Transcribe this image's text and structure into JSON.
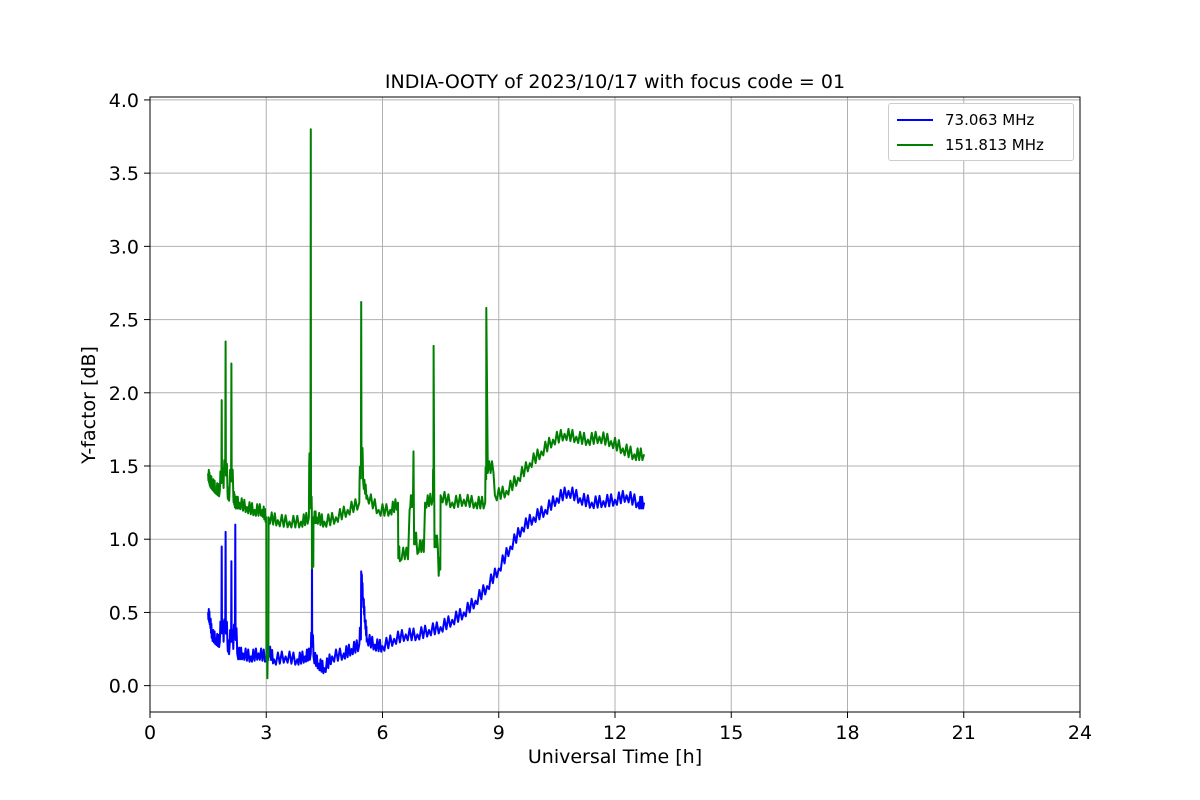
{
  "chart_data": {
    "type": "line",
    "title": "INDIA-OOTY of 2023/10/17 with focus code = 01",
    "xlabel": "Universal Time [h]",
    "ylabel": "Y-factor [dB]",
    "xlim": [
      0,
      24
    ],
    "ylim": [
      -0.18,
      4.02
    ],
    "xticks": [
      0,
      3,
      6,
      9,
      12,
      15,
      18,
      21,
      24
    ],
    "yticks": [
      0.0,
      0.5,
      1.0,
      1.5,
      2.0,
      2.5,
      3.0,
      3.5,
      4.0
    ],
    "xtick_labels": [
      "0",
      "3",
      "6",
      "9",
      "12",
      "15",
      "18",
      "21",
      "24"
    ],
    "ytick_labels": [
      "0.0",
      "0.5",
      "1.0",
      "1.5",
      "2.0",
      "2.5",
      "3.0",
      "3.5",
      "4.0"
    ],
    "grid": true,
    "legend_position": "top-right",
    "series": [
      {
        "name": "73.063 MHz",
        "color": "#0000ff",
        "x": [
          1.5,
          1.55,
          1.6,
          1.7,
          1.8,
          1.85,
          1.9,
          1.95,
          2.0,
          2.05,
          2.1,
          2.15,
          2.2,
          2.25,
          2.4,
          2.6,
          2.8,
          3.0,
          3.05,
          3.2,
          3.5,
          3.8,
          4.0,
          4.15,
          4.18,
          4.22,
          4.35,
          4.5,
          4.7,
          5.0,
          5.2,
          5.4,
          5.45,
          5.5,
          5.55,
          5.6,
          5.8,
          6.0,
          6.3,
          6.6,
          6.9,
          7.2,
          7.5,
          7.8,
          8.1,
          8.4,
          8.7,
          9.0,
          9.3,
          9.6,
          9.9,
          10.2,
          10.5,
          10.8,
          11.1,
          11.4,
          11.7,
          12.0,
          12.3,
          12.6,
          12.75
        ],
        "y": [
          0.5,
          0.45,
          0.35,
          0.32,
          0.3,
          0.95,
          0.3,
          1.05,
          0.28,
          0.25,
          0.85,
          0.25,
          1.1,
          0.22,
          0.22,
          0.2,
          0.22,
          0.2,
          0.25,
          0.18,
          0.2,
          0.18,
          0.2,
          0.22,
          0.9,
          0.2,
          0.15,
          0.12,
          0.2,
          0.22,
          0.25,
          0.28,
          0.78,
          0.6,
          0.45,
          0.32,
          0.28,
          0.27,
          0.32,
          0.35,
          0.35,
          0.38,
          0.4,
          0.45,
          0.5,
          0.58,
          0.68,
          0.8,
          0.95,
          1.08,
          1.15,
          1.2,
          1.28,
          1.33,
          1.28,
          1.25,
          1.26,
          1.27,
          1.3,
          1.25,
          1.25
        ]
      },
      {
        "name": "151.813 MHz",
        "color": "#008000",
        "x": [
          1.5,
          1.55,
          1.6,
          1.7,
          1.8,
          1.85,
          1.9,
          1.95,
          2.0,
          2.05,
          2.1,
          2.15,
          2.2,
          2.3,
          2.5,
          2.7,
          2.9,
          3.0,
          3.03,
          3.06,
          3.3,
          3.6,
          3.9,
          4.1,
          4.15,
          4.18,
          4.22,
          4.3,
          4.5,
          4.8,
          5.1,
          5.4,
          5.45,
          5.5,
          5.6,
          5.9,
          6.2,
          6.4,
          6.45,
          6.7,
          6.8,
          6.9,
          7.1,
          7.3,
          7.32,
          7.45,
          7.5,
          7.8,
          8.1,
          8.4,
          8.65,
          8.68,
          8.9,
          9.2,
          9.5,
          9.8,
          10.1,
          10.4,
          10.7,
          11.0,
          11.3,
          11.6,
          11.9,
          12.2,
          12.5,
          12.75
        ],
        "y": [
          1.45,
          1.4,
          1.38,
          1.35,
          1.33,
          1.95,
          1.35,
          2.35,
          1.32,
          1.3,
          2.2,
          1.3,
          1.25,
          1.25,
          1.22,
          1.2,
          1.2,
          1.15,
          0.05,
          1.15,
          1.13,
          1.12,
          1.12,
          1.15,
          3.8,
          0.8,
          1.15,
          1.15,
          1.12,
          1.15,
          1.2,
          1.25,
          2.62,
          1.4,
          1.3,
          1.2,
          1.2,
          1.25,
          0.85,
          1.2,
          1.6,
          0.9,
          1.25,
          1.28,
          2.32,
          0.75,
          1.3,
          1.25,
          1.27,
          1.25,
          1.25,
          2.58,
          1.3,
          1.33,
          1.42,
          1.52,
          1.6,
          1.68,
          1.72,
          1.7,
          1.68,
          1.7,
          1.67,
          1.62,
          1.58,
          1.58
        ]
      }
    ]
  }
}
